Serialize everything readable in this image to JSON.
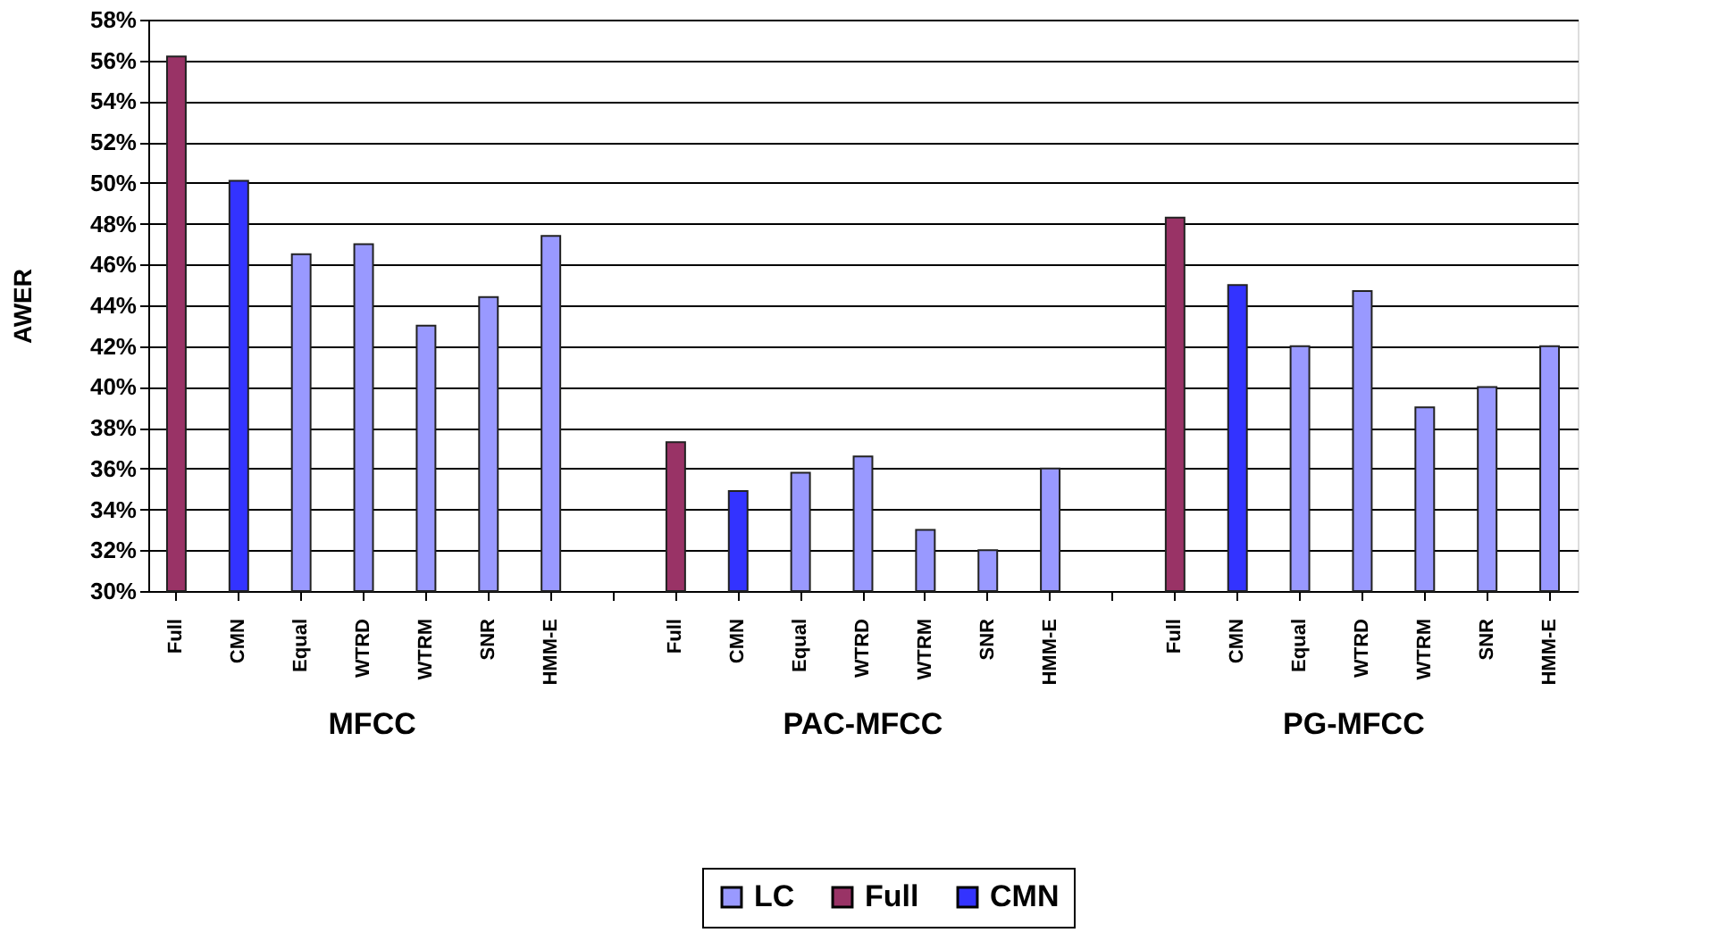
{
  "chart_data": {
    "type": "bar",
    "ylabel": "AWER",
    "categories": [
      "Full",
      "CMN",
      "Equal",
      "WTRD",
      "WTRM",
      "SNR",
      "HMM-E",
      null,
      "Full",
      "CMN",
      "Equal",
      "WTRD",
      "WTRM",
      "SNR",
      "HMM-E",
      null,
      "Full",
      "CMN",
      "Equal",
      "WTRD",
      "WTRM",
      "SNR",
      "HMM-E"
    ],
    "series": [
      {
        "name": "LC",
        "color": "#9999ff",
        "values": [
          null,
          null,
          46.5,
          47,
          43,
          44.4,
          47.4,
          null,
          null,
          null,
          35.8,
          36.6,
          33,
          32,
          36,
          null,
          null,
          null,
          42,
          44.7,
          39,
          40,
          42
        ]
      },
      {
        "name": "Full",
        "color": "#993366",
        "values": [
          56.2,
          null,
          null,
          null,
          null,
          null,
          null,
          null,
          37.3,
          null,
          null,
          null,
          null,
          null,
          null,
          null,
          48.3,
          null,
          null,
          null,
          null,
          null,
          null
        ]
      },
      {
        "name": "CMN",
        "color": "#3333ff",
        "values": [
          null,
          50.1,
          null,
          null,
          null,
          null,
          null,
          null,
          null,
          34.9,
          null,
          null,
          null,
          null,
          null,
          null,
          null,
          45,
          null,
          null,
          null,
          null,
          null
        ]
      }
    ],
    "annotations": [
      "MFCC",
      "PAC-MFCC",
      "PG-MFCC"
    ],
    "ylim": [
      30,
      58
    ],
    "yticks": [
      {
        "value": 30,
        "label": "30%"
      },
      {
        "value": 32,
        "label": "32%"
      },
      {
        "value": 34,
        "label": "34%"
      },
      {
        "value": 36,
        "label": "36%"
      },
      {
        "value": 38,
        "label": "38%"
      },
      {
        "value": 40,
        "label": "40%"
      },
      {
        "value": 42,
        "label": "42%"
      },
      {
        "value": 44,
        "label": "44%"
      },
      {
        "value": 46,
        "label": "46%"
      },
      {
        "value": 48,
        "label": "48%"
      },
      {
        "value": 50,
        "label": "50%"
      },
      {
        "value": 52,
        "label": "52%"
      },
      {
        "value": 54,
        "label": "54%"
      },
      {
        "value": 56,
        "label": "56%"
      },
      {
        "value": 58,
        "label": "58%"
      }
    ],
    "grid": "y",
    "legend": "bottom"
  }
}
